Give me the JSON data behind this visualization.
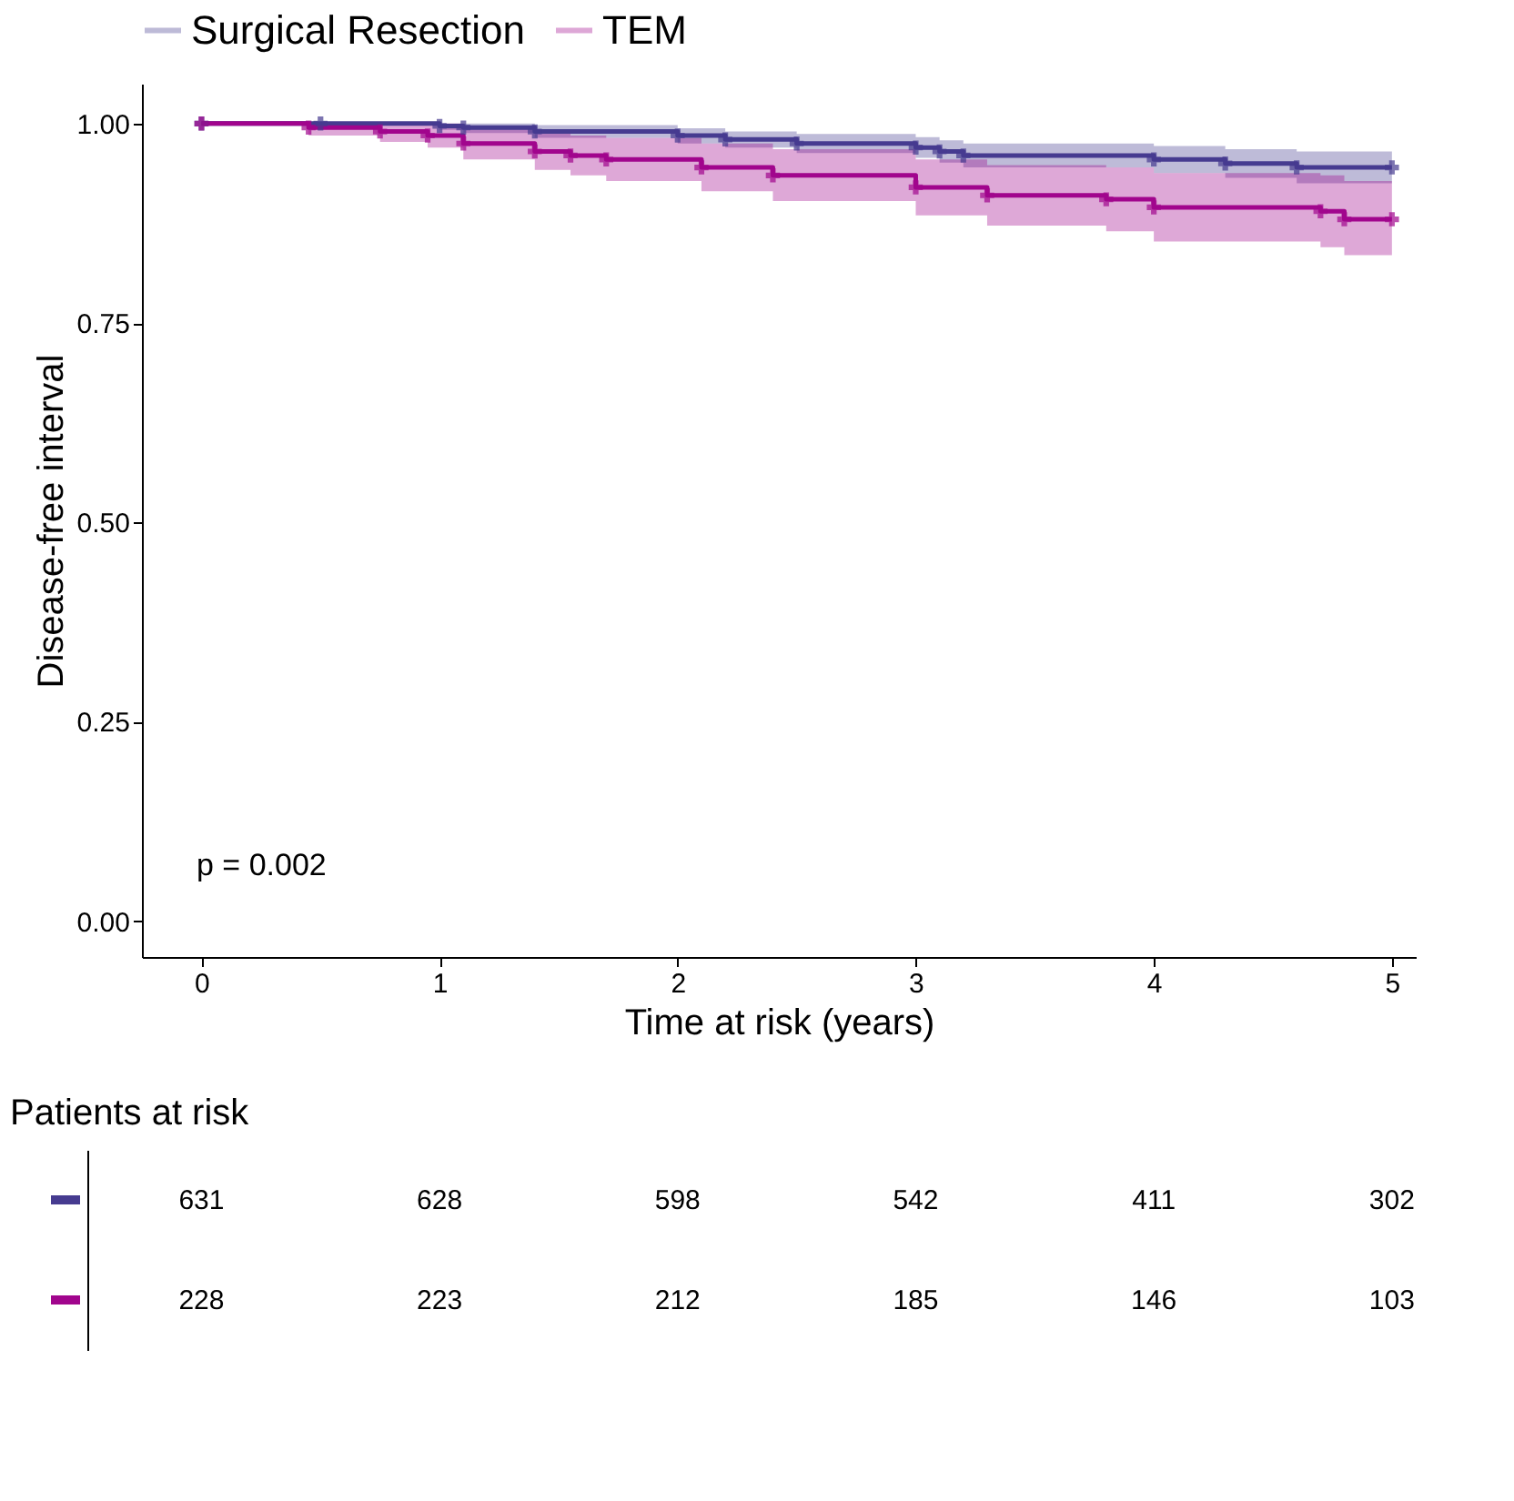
{
  "chart_data": [
    {
      "type": "step",
      "ylabel": "Disease-free interval",
      "xlabel": "Time at risk (years)",
      "xlim": [
        -0.25,
        5.1
      ],
      "xticks": [
        0,
        1,
        2,
        3,
        4,
        5
      ],
      "ylim": [
        -0.045,
        1.05
      ],
      "yticks": [
        {
          "value": 0,
          "label": "0.00"
        },
        {
          "value": 0.25,
          "label": "0.25"
        },
        {
          "value": 0.5,
          "label": "0.50"
        },
        {
          "value": 0.75,
          "label": "0.75"
        },
        {
          "value": 1,
          "label": "1.00"
        }
      ],
      "grid": false,
      "legend": "top",
      "marker": "cross",
      "annotations": [
        "p = 0.002"
      ],
      "series": [
        {
          "name": "Surgical Resection",
          "color": "#463b90",
          "x": [
            0,
            0.5,
            1.0,
            1.1,
            1.4,
            2.0,
            2.2,
            2.5,
            3.0,
            3.1,
            3.2,
            4.0,
            4.3,
            4.6,
            5.0
          ],
          "values": [
            1,
            1,
            0.997,
            0.995,
            0.99,
            0.985,
            0.98,
            0.975,
            0.97,
            0.965,
            0.96,
            0.955,
            0.95,
            0.945,
            0.945
          ],
          "lower": [
            1,
            1,
            0.992,
            0.988,
            0.982,
            0.975,
            0.97,
            0.963,
            0.957,
            0.951,
            0.945,
            0.938,
            0.932,
            0.925,
            0.925
          ],
          "upper": [
            1,
            1,
            1,
            1,
            0.998,
            0.994,
            0.99,
            0.987,
            0.983,
            0.979,
            0.975,
            0.972,
            0.968,
            0.965,
            0.965
          ]
        },
        {
          "name": "TEM",
          "color": "#a1058d",
          "x": [
            0,
            0.45,
            0.75,
            0.95,
            1.1,
            1.4,
            1.55,
            1.7,
            2.1,
            2.4,
            3.0,
            3.3,
            3.8,
            4.0,
            4.7,
            4.8,
            5.0
          ],
          "values": [
            1,
            0.995,
            0.99,
            0.985,
            0.975,
            0.965,
            0.96,
            0.955,
            0.945,
            0.935,
            0.92,
            0.91,
            0.905,
            0.895,
            0.89,
            0.88,
            0.88
          ],
          "lower": [
            1,
            0.985,
            0.977,
            0.97,
            0.955,
            0.942,
            0.935,
            0.928,
            0.915,
            0.903,
            0.885,
            0.872,
            0.865,
            0.852,
            0.845,
            0.835,
            0.835
          ],
          "upper": [
            1,
            1,
            1,
            1,
            0.995,
            0.988,
            0.985,
            0.982,
            0.975,
            0.968,
            0.955,
            0.948,
            0.945,
            0.938,
            0.935,
            0.928,
            0.928
          ]
        }
      ]
    },
    {
      "type": "other",
      "title": "Patients at risk",
      "annotations": [
        "631",
        "628",
        "598",
        "542",
        "411",
        "302",
        "228",
        "223",
        "212",
        "185",
        "146",
        "103"
      ]
    }
  ]
}
